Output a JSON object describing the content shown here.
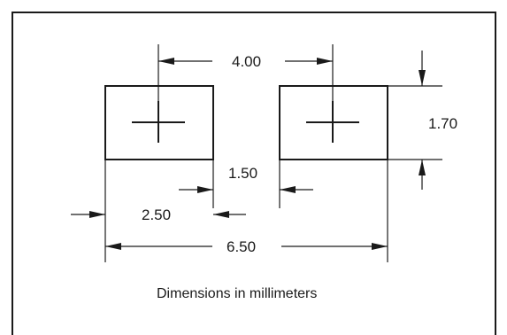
{
  "dimensions": {
    "pitch": "4.00",
    "pad_height": "1.70",
    "gap": "1.50",
    "pad_width": "2.50",
    "overall_width": "6.50"
  },
  "caption": "Dimensions in millimeters"
}
